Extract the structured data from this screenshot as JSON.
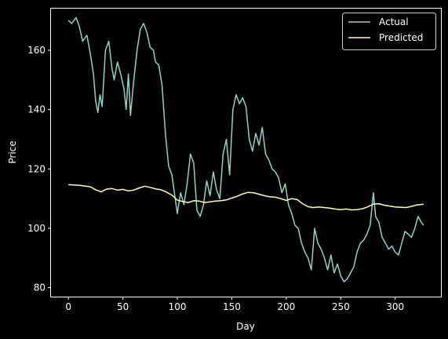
{
  "chart_data": {
    "type": "line",
    "title": "",
    "xlabel": "Day",
    "ylabel": "Price",
    "xlim": [
      -16,
      342
    ],
    "ylim": [
      77,
      174
    ],
    "xticks": [
      0,
      50,
      100,
      150,
      200,
      250,
      300
    ],
    "yticks": [
      80,
      100,
      120,
      140,
      160
    ],
    "grid": false,
    "legend_position": "top-right",
    "series": [
      {
        "name": "Actual",
        "color": "#8dd3c7",
        "x": [
          0,
          3,
          7,
          10,
          13,
          17,
          20,
          23,
          25,
          27,
          29,
          31,
          34,
          37,
          40,
          42,
          45,
          48,
          51,
          53,
          55,
          57,
          60,
          63,
          66,
          69,
          72,
          75,
          78,
          80,
          83,
          86,
          89,
          92,
          95,
          98,
          100,
          103,
          106,
          109,
          112,
          115,
          118,
          121,
          124,
          127,
          130,
          133,
          136,
          139,
          142,
          145,
          148,
          151,
          154,
          157,
          160,
          163,
          166,
          169,
          172,
          175,
          178,
          181,
          184,
          187,
          190,
          193,
          196,
          199,
          202,
          205,
          208,
          211,
          214,
          217,
          220,
          223,
          226,
          229,
          232,
          235,
          238,
          241,
          244,
          247,
          250,
          253,
          256,
          259,
          262,
          265,
          268,
          271,
          274,
          277,
          280,
          282,
          285,
          288,
          291,
          294,
          297,
          300,
          303,
          306,
          309,
          312,
          315,
          318,
          321,
          324,
          326
        ],
        "values": [
          170,
          169,
          171,
          168,
          163,
          165,
          159,
          152,
          143,
          139,
          145,
          141,
          160,
          163,
          154,
          150,
          156,
          152,
          147,
          140,
          152,
          138,
          150,
          160,
          167,
          169,
          166,
          161,
          160,
          156,
          155,
          148,
          132,
          121,
          118,
          110,
          105,
          112,
          108,
          115,
          125,
          122,
          106,
          104,
          108,
          116,
          111,
          119,
          113,
          110,
          125,
          130,
          118,
          140,
          145,
          142,
          144,
          141,
          130,
          126,
          132,
          128,
          134,
          125,
          123,
          120,
          119,
          117,
          112,
          115,
          108,
          105,
          101,
          100,
          95,
          92,
          90,
          86,
          100,
          95,
          93,
          90,
          86,
          91,
          85,
          88,
          84,
          82,
          83,
          85,
          87,
          92,
          95,
          96,
          98,
          101,
          112,
          104,
          102,
          97,
          95,
          93,
          94,
          92,
          91,
          95,
          99,
          98,
          97,
          100,
          104,
          102,
          101
        ]
      },
      {
        "name": "Predicted",
        "color": "#ffffb3",
        "x": [
          0,
          10,
          20,
          25,
          30,
          35,
          40,
          45,
          50,
          55,
          60,
          65,
          70,
          75,
          80,
          85,
          90,
          95,
          100,
          105,
          110,
          115,
          120,
          125,
          130,
          135,
          140,
          145,
          150,
          155,
          160,
          165,
          170,
          175,
          180,
          185,
          190,
          195,
          200,
          205,
          210,
          215,
          220,
          225,
          230,
          235,
          240,
          245,
          250,
          255,
          260,
          265,
          270,
          275,
          280,
          285,
          290,
          295,
          300,
          305,
          310,
          315,
          320,
          326
        ],
        "values": [
          114.7,
          114.5,
          114.0,
          113.0,
          112.3,
          113.2,
          113.4,
          112.9,
          113.1,
          112.6,
          112.9,
          113.6,
          114.2,
          113.8,
          113.3,
          113.0,
          112.2,
          111.2,
          109.5,
          109.0,
          108.7,
          109.3,
          109.2,
          108.7,
          108.9,
          109.2,
          109.3,
          109.6,
          110.2,
          110.8,
          111.6,
          112.1,
          112.0,
          111.5,
          111.0,
          110.6,
          110.5,
          110.0,
          109.4,
          110.0,
          109.7,
          108.3,
          107.3,
          107.0,
          107.2,
          107.0,
          106.8,
          106.5,
          106.3,
          106.5,
          106.2,
          106.3,
          106.6,
          107.3,
          108.2,
          108.3,
          107.8,
          107.5,
          107.2,
          107.1,
          107.0,
          107.4,
          107.9,
          108.1
        ]
      }
    ]
  }
}
